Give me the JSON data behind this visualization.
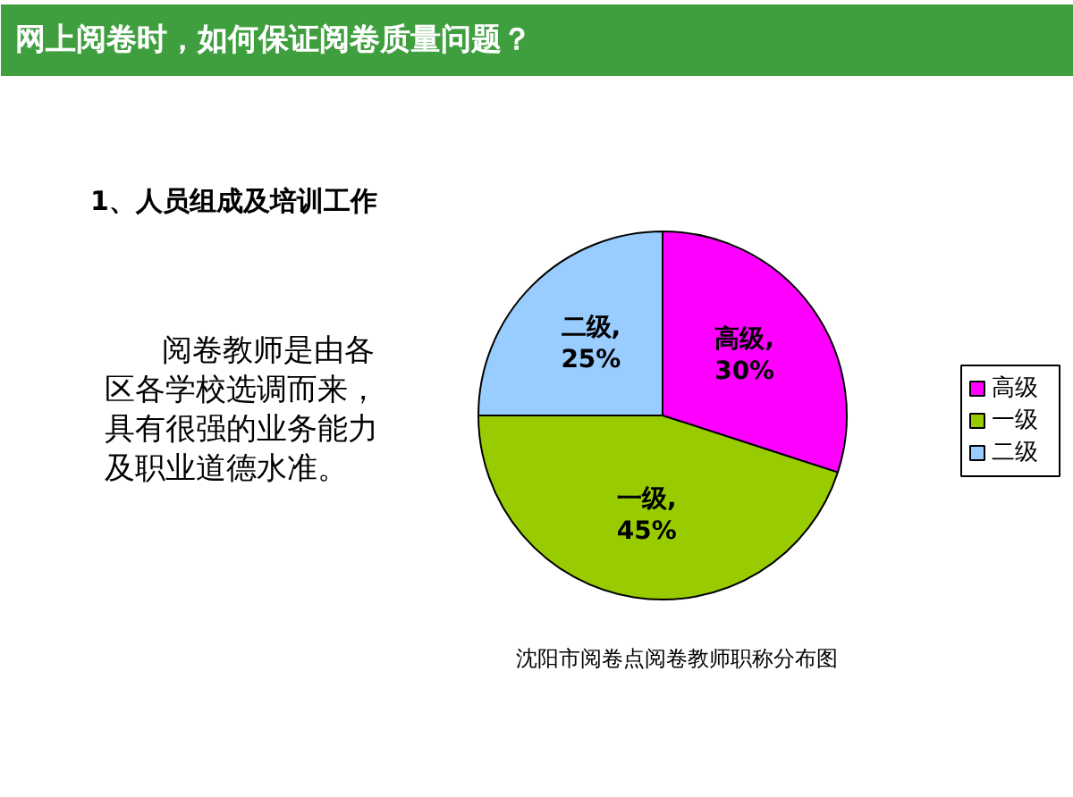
{
  "chart_data": {
    "type": "pie",
    "title": "网上阅卷时，如何保证阅卷质量问题？",
    "subtitle": "1、人员组成及培训工作",
    "categories": [
      "高级",
      "一级",
      "二级"
    ],
    "values": [
      30,
      45,
      25
    ],
    "colors": [
      "#ff00ff",
      "#99cc00",
      "#99ccff"
    ],
    "value_labels": [
      "高级, 30%",
      "一级, 45%",
      "二级, 25%"
    ],
    "legend": "right",
    "annotations": [
      "阅卷教师是由各",
      "区各学校选调而来，",
      "具有很强的业务能力",
      "及职业道德水准。",
      "沈阳市阅卷点阅卷教师职称分布图"
    ]
  }
}
